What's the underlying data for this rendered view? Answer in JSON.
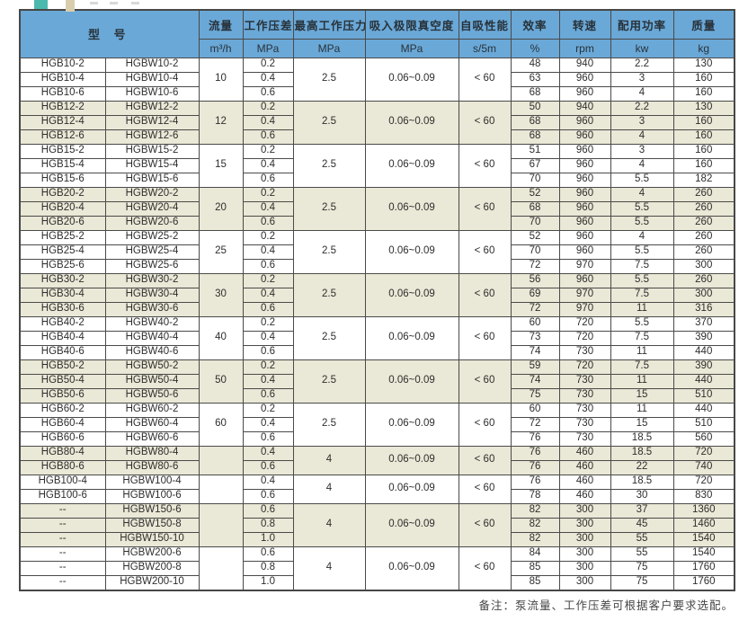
{
  "page": {
    "note": "备注：泵流量、工作压差可根据客户要求选配。"
  },
  "table": {
    "header": {
      "model": "型  号",
      "cols": [
        {
          "label": "流量",
          "unit": "m³/h"
        },
        {
          "label": "工作压差",
          "unit": "MPa"
        },
        {
          "label": "最高工作压力",
          "unit": "MPa"
        },
        {
          "label": "吸入极限真空度",
          "unit": "MPa"
        },
        {
          "label": "自吸性能",
          "unit": "s/5m"
        },
        {
          "label": "效率",
          "unit": "%"
        },
        {
          "label": "转速",
          "unit": "rpm"
        },
        {
          "label": "配用功率",
          "unit": "kw"
        },
        {
          "label": "质量",
          "unit": "kg"
        }
      ]
    },
    "groups": [
      {
        "flow": "10",
        "max_pressure": "2.5",
        "vacuum": "0.06~0.09",
        "self_priming": "< 60",
        "shaded": false,
        "rows": [
          {
            "model_b": "HGB10-2",
            "model_w": "HGBW10-2",
            "diff": "0.2",
            "eff": "48",
            "rpm": "940",
            "kw": "2.2",
            "kg": "130"
          },
          {
            "model_b": "HGB10-4",
            "model_w": "HGBW10-4",
            "diff": "0.4",
            "eff": "63",
            "rpm": "960",
            "kw": "3",
            "kg": "160"
          },
          {
            "model_b": "HGB10-6",
            "model_w": "HGBW10-6",
            "diff": "0.6",
            "eff": "68",
            "rpm": "960",
            "kw": "4",
            "kg": "160"
          }
        ]
      },
      {
        "flow": "12",
        "max_pressure": "2.5",
        "vacuum": "0.06~0.09",
        "self_priming": "< 60",
        "shaded": true,
        "rows": [
          {
            "model_b": "HGB12-2",
            "model_w": "HGBW12-2",
            "diff": "0.2",
            "eff": "50",
            "rpm": "940",
            "kw": "2.2",
            "kg": "130"
          },
          {
            "model_b": "HGB12-4",
            "model_w": "HGBW12-4",
            "diff": "0.4",
            "eff": "68",
            "rpm": "960",
            "kw": "3",
            "kg": "160"
          },
          {
            "model_b": "HGB12-6",
            "model_w": "HGBW12-6",
            "diff": "0.6",
            "eff": "68",
            "rpm": "960",
            "kw": "4",
            "kg": "160"
          }
        ]
      },
      {
        "flow": "15",
        "max_pressure": "2.5",
        "vacuum": "0.06~0.09",
        "self_priming": "< 60",
        "shaded": false,
        "rows": [
          {
            "model_b": "HGB15-2",
            "model_w": "HGBW15-2",
            "diff": "0.2",
            "eff": "51",
            "rpm": "960",
            "kw": "3",
            "kg": "160"
          },
          {
            "model_b": "HGB15-4",
            "model_w": "HGBW15-4",
            "diff": "0.4",
            "eff": "67",
            "rpm": "960",
            "kw": "4",
            "kg": "160"
          },
          {
            "model_b": "HGB15-6",
            "model_w": "HGBW15-6",
            "diff": "0.6",
            "eff": "70",
            "rpm": "960",
            "kw": "5.5",
            "kg": "182"
          }
        ]
      },
      {
        "flow": "20",
        "max_pressure": "2.5",
        "vacuum": "0.06~0.09",
        "self_priming": "< 60",
        "shaded": true,
        "rows": [
          {
            "model_b": "HGB20-2",
            "model_w": "HGBW20-2",
            "diff": "0.2",
            "eff": "52",
            "rpm": "960",
            "kw": "4",
            "kg": "260"
          },
          {
            "model_b": "HGB20-4",
            "model_w": "HGBW20-4",
            "diff": "0.4",
            "eff": "68",
            "rpm": "960",
            "kw": "5.5",
            "kg": "260"
          },
          {
            "model_b": "HGB20-6",
            "model_w": "HGBW20-6",
            "diff": "0.6",
            "eff": "70",
            "rpm": "960",
            "kw": "5.5",
            "kg": "260"
          }
        ]
      },
      {
        "flow": "25",
        "max_pressure": "2.5",
        "vacuum": "0.06~0.09",
        "self_priming": "< 60",
        "shaded": false,
        "rows": [
          {
            "model_b": "HGB25-2",
            "model_w": "HGBW25-2",
            "diff": "0.2",
            "eff": "52",
            "rpm": "960",
            "kw": "4",
            "kg": "260"
          },
          {
            "model_b": "HGB25-4",
            "model_w": "HGBW25-4",
            "diff": "0.4",
            "eff": "70",
            "rpm": "960",
            "kw": "5.5",
            "kg": "260"
          },
          {
            "model_b": "HGB25-6",
            "model_w": "HGBW25-6",
            "diff": "0.6",
            "eff": "72",
            "rpm": "970",
            "kw": "7.5",
            "kg": "300"
          }
        ]
      },
      {
        "flow": "30",
        "max_pressure": "2.5",
        "vacuum": "0.06~0.09",
        "self_priming": "< 60",
        "shaded": true,
        "rows": [
          {
            "model_b": "HGB30-2",
            "model_w": "HGBW30-2",
            "diff": "0.2",
            "eff": "56",
            "rpm": "960",
            "kw": "5.5",
            "kg": "260"
          },
          {
            "model_b": "HGB30-4",
            "model_w": "HGBW30-4",
            "diff": "0.4",
            "eff": "69",
            "rpm": "970",
            "kw": "7.5",
            "kg": "300"
          },
          {
            "model_b": "HGB30-6",
            "model_w": "HGBW30-6",
            "diff": "0.6",
            "eff": "72",
            "rpm": "970",
            "kw": "11",
            "kg": "316"
          }
        ]
      },
      {
        "flow": "40",
        "max_pressure": "2.5",
        "vacuum": "0.06~0.09",
        "self_priming": "< 60",
        "shaded": false,
        "rows": [
          {
            "model_b": "HGB40-2",
            "model_w": "HGBW40-2",
            "diff": "0.2",
            "eff": "60",
            "rpm": "720",
            "kw": "5.5",
            "kg": "370"
          },
          {
            "model_b": "HGB40-4",
            "model_w": "HGBW40-4",
            "diff": "0.4",
            "eff": "73",
            "rpm": "720",
            "kw": "7.5",
            "kg": "390"
          },
          {
            "model_b": "HGB40-6",
            "model_w": "HGBW40-6",
            "diff": "0.6",
            "eff": "74",
            "rpm": "730",
            "kw": "11",
            "kg": "440"
          }
        ]
      },
      {
        "flow": "50",
        "max_pressure": "2.5",
        "vacuum": "0.06~0.09",
        "self_priming": "< 60",
        "shaded": true,
        "rows": [
          {
            "model_b": "HGB50-2",
            "model_w": "HGBW50-2",
            "diff": "0.2",
            "eff": "59",
            "rpm": "720",
            "kw": "7.5",
            "kg": "390"
          },
          {
            "model_b": "HGB50-4",
            "model_w": "HGBW50-4",
            "diff": "0.4",
            "eff": "74",
            "rpm": "730",
            "kw": "11",
            "kg": "440"
          },
          {
            "model_b": "HGB50-6",
            "model_w": "HGBW50-6",
            "diff": "0.6",
            "eff": "75",
            "rpm": "730",
            "kw": "15",
            "kg": "510"
          }
        ]
      },
      {
        "flow": "60",
        "max_pressure": "2.5",
        "vacuum": "0.06~0.09",
        "self_priming": "< 60",
        "shaded": false,
        "rows": [
          {
            "model_b": "HGB60-2",
            "model_w": "HGBW60-2",
            "diff": "0.2",
            "eff": "60",
            "rpm": "730",
            "kw": "11",
            "kg": "440"
          },
          {
            "model_b": "HGB60-4",
            "model_w": "HGBW60-4",
            "diff": "0.4",
            "eff": "72",
            "rpm": "730",
            "kw": "15",
            "kg": "510"
          },
          {
            "model_b": "HGB60-6",
            "model_w": "HGBW60-6",
            "diff": "0.6",
            "eff": "76",
            "rpm": "730",
            "kw": "18.5",
            "kg": "560"
          }
        ]
      },
      {
        "flow": "",
        "max_pressure": "4",
        "vacuum": "0.06~0.09",
        "self_priming": "< 60",
        "shaded": true,
        "rows": [
          {
            "model_b": "HGB80-4",
            "model_w": "HGBW80-4",
            "diff": "0.4",
            "eff": "76",
            "rpm": "460",
            "kw": "18.5",
            "kg": "720"
          },
          {
            "model_b": "HGB80-6",
            "model_w": "HGBW80-6",
            "diff": "0.6",
            "eff": "76",
            "rpm": "460",
            "kw": "22",
            "kg": "740"
          }
        ]
      },
      {
        "flow": "",
        "max_pressure": "4",
        "vacuum": "0.06~0.09",
        "self_priming": "< 60",
        "shaded": false,
        "rows": [
          {
            "model_b": "HGB100-4",
            "model_w": "HGBW100-4",
            "diff": "0.4",
            "eff": "76",
            "rpm": "460",
            "kw": "18.5",
            "kg": "720"
          },
          {
            "model_b": "HGB100-6",
            "model_w": "HGBW100-6",
            "diff": "0.6",
            "eff": "78",
            "rpm": "460",
            "kw": "30",
            "kg": "830"
          }
        ]
      },
      {
        "flow": "",
        "max_pressure": "4",
        "vacuum": "0.06~0.09",
        "self_priming": "< 60",
        "shaded": true,
        "rows": [
          {
            "model_b": "--",
            "model_w": "HGBW150-6",
            "diff": "0.6",
            "eff": "82",
            "rpm": "300",
            "kw": "37",
            "kg": "1360"
          },
          {
            "model_b": "--",
            "model_w": "HGBW150-8",
            "diff": "0.8",
            "eff": "82",
            "rpm": "300",
            "kw": "45",
            "kg": "1460"
          },
          {
            "model_b": "--",
            "model_w": "HGBW150-10",
            "diff": "1.0",
            "eff": "82",
            "rpm": "300",
            "kw": "55",
            "kg": "1540"
          }
        ]
      },
      {
        "flow": "",
        "max_pressure": "4",
        "vacuum": "0.06~0.09",
        "self_priming": "< 60",
        "shaded": false,
        "rows": [
          {
            "model_b": "--",
            "model_w": "HGBW200-6",
            "diff": "0.6",
            "eff": "84",
            "rpm": "300",
            "kw": "55",
            "kg": "1540"
          },
          {
            "model_b": "--",
            "model_w": "HGBW200-8",
            "diff": "0.8",
            "eff": "85",
            "rpm": "300",
            "kw": "75",
            "kg": "1760"
          },
          {
            "model_b": "--",
            "model_w": "HGBW200-10",
            "diff": "1.0",
            "eff": "85",
            "rpm": "300",
            "kw": "75",
            "kg": "1760"
          }
        ]
      }
    ]
  }
}
